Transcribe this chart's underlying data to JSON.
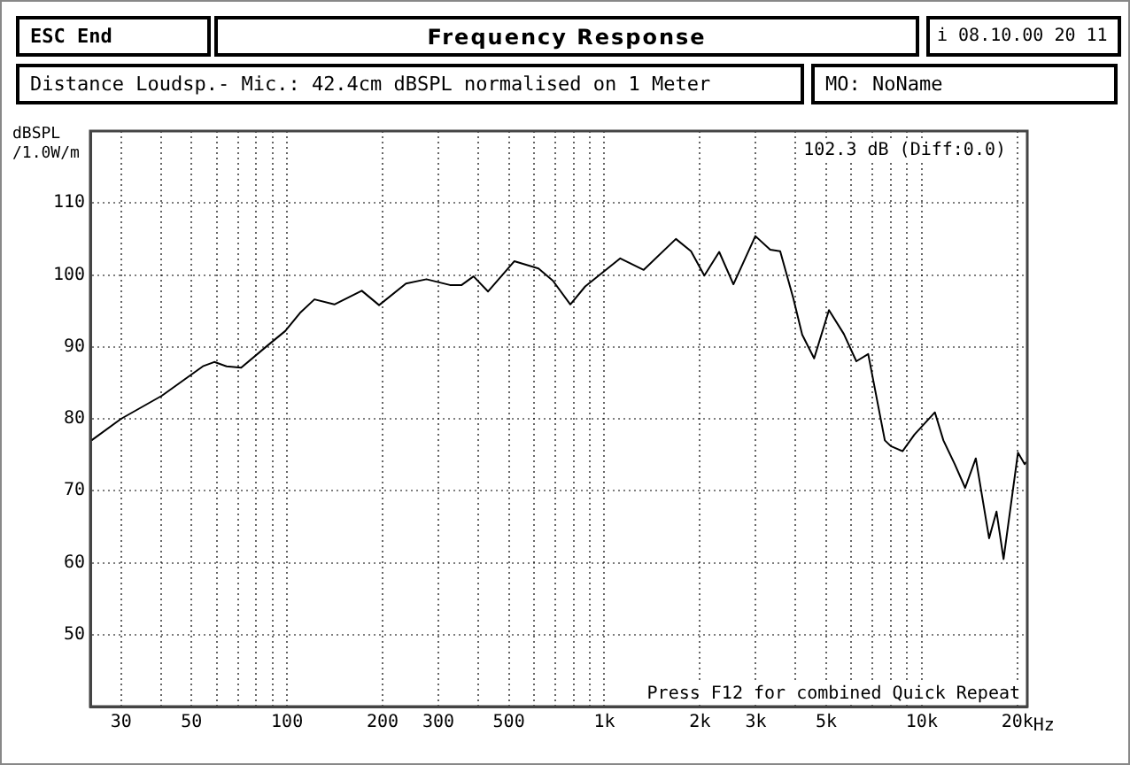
{
  "chart_data": {
    "type": "line",
    "title": "Frequency Response",
    "subtitle": "Distance Loudsp.- Mic.: 42.4cm dBSPL normalised on 1 Meter",
    "ylabel": "dBSPL /1.0W/m",
    "annotations": [
      "ESC End",
      "i 08.10.00 20 11",
      "MO: NoName",
      "102.3 dB (Diff:0.0)",
      "Press F12 for combined Quick Repeat"
    ],
    "log": "x",
    "grid": true,
    "legend": false,
    "marker": "none",
    "line_style": "solid",
    "xlim": [
      24,
      21500
    ],
    "ylim": [
      40,
      120
    ],
    "xticks": [
      30,
      {
        "value": 40,
        "label": null
      },
      50,
      {
        "value": 60,
        "label": null
      },
      {
        "value": 70,
        "label": null
      },
      {
        "value": 80,
        "label": null
      },
      {
        "value": 90,
        "label": null
      },
      100,
      200,
      300,
      {
        "value": 400,
        "label": null
      },
      500,
      {
        "value": 600,
        "label": null
      },
      {
        "value": 700,
        "label": null
      },
      {
        "value": 800,
        "label": null
      },
      {
        "value": 900,
        "label": null
      },
      {
        "value": 1000,
        "label": "1k"
      },
      {
        "value": 2000,
        "label": "2k"
      },
      {
        "value": 3000,
        "label": "3k"
      },
      {
        "value": 4000,
        "label": null
      },
      {
        "value": 5000,
        "label": "5k"
      },
      {
        "value": 6000,
        "label": null
      },
      {
        "value": 7000,
        "label": null
      },
      {
        "value": 8000,
        "label": null
      },
      {
        "value": 9000,
        "label": null
      },
      {
        "value": 10000,
        "label": "10k"
      },
      {
        "value": 20000,
        "label": "20k"
      }
    ],
    "xlabel": "Hz",
    "yticks": [
      50,
      60,
      70,
      80,
      90,
      100,
      110
    ],
    "x": [
      24.2,
      30,
      40.3,
      54.3,
      59,
      64.5,
      71.7,
      86.9,
      98.7,
      109.8,
      122,
      141,
      172,
      195,
      237,
      275,
      326,
      355,
      387,
      430,
      520,
      620,
      688,
      781,
      870,
      1122,
      1330,
      1680,
      1875,
      2065,
      2300,
      2550,
      2990,
      3330,
      3580,
      3940,
      4200,
      4580,
      5100,
      5680,
      6220,
      6780,
      7650,
      7990,
      8700,
      9480,
      11000,
      11700,
      12700,
      13700,
      14800,
      16300,
      17200,
      18100,
      20100,
      21100,
      21400
    ],
    "series": [
      {
        "color": "#000000",
        "values": [
          77.0,
          80.0,
          83.2,
          87.3,
          87.9,
          87.3,
          87.1,
          90.2,
          92.2,
          94.7,
          96.6,
          95.9,
          97.8,
          95.8,
          98.8,
          99.4,
          98.6,
          98.6,
          99.8,
          97.7,
          101.9,
          100.9,
          99.2,
          95.9,
          98.4,
          102.3,
          100.7,
          105.0,
          103.3,
          99.9,
          103.2,
          98.7,
          105.4,
          103.5,
          103.3,
          96.7,
          91.7,
          88.4,
          95.1,
          91.8,
          88.0,
          89.0,
          77.0,
          76.2,
          75.5,
          77.8,
          80.9,
          77.0,
          73.7,
          70.4,
          74.5,
          63.4,
          67.1,
          60.5,
          75.3,
          73.7,
          74.0
        ]
      }
    ]
  }
}
